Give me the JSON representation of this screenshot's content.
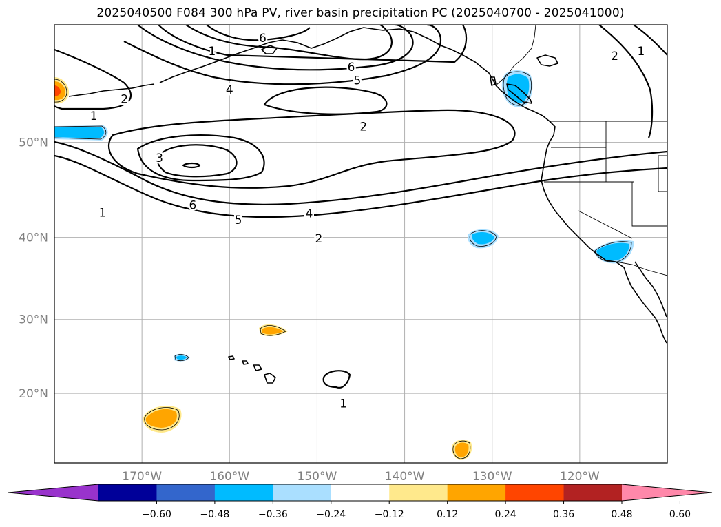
{
  "title": "2025040500 F084 300 hPa PV, river basin precipitation PC (2025040700 - 2025041000)",
  "map": {
    "lon_range": [
      -180,
      -110
    ],
    "lat_range": [
      10,
      60
    ],
    "lat_ticks": [
      {
        "value": 20,
        "label": "20°N"
      },
      {
        "value": 30,
        "label": "30°N"
      },
      {
        "value": 40,
        "label": "40°N"
      },
      {
        "value": 50,
        "label": "50°N"
      }
    ],
    "lon_ticks": [
      {
        "value": -170,
        "label": "170°W"
      },
      {
        "value": -160,
        "label": "160°W"
      },
      {
        "value": -150,
        "label": "150°W"
      },
      {
        "value": -140,
        "label": "140°W"
      },
      {
        "value": -130,
        "label": "130°W"
      },
      {
        "value": -120,
        "label": "120°W"
      }
    ],
    "pv_contour_labels": [
      {
        "text": "1",
        "lon": -174.5,
        "lat": 42.8
      },
      {
        "text": "1",
        "lon": -175.5,
        "lat": 52.5
      },
      {
        "text": "1",
        "lon": -162,
        "lat": 58
      },
      {
        "text": "1",
        "lon": -113,
        "lat": 58
      },
      {
        "text": "1",
        "lon": -147,
        "lat": 18.6
      },
      {
        "text": "2",
        "lon": -172,
        "lat": 54
      },
      {
        "text": "2",
        "lon": -149.8,
        "lat": 39.9
      },
      {
        "text": "2",
        "lon": -144.7,
        "lat": 51.5
      },
      {
        "text": "2",
        "lon": -116,
        "lat": 57.6
      },
      {
        "text": "3",
        "lon": -168,
        "lat": 48.5
      },
      {
        "text": "4",
        "lon": -150.9,
        "lat": 42.7
      },
      {
        "text": "4",
        "lon": -160,
        "lat": 54.8
      },
      {
        "text": "5",
        "lon": -159,
        "lat": 42
      },
      {
        "text": "5",
        "lon": -145.4,
        "lat": 55.6
      },
      {
        "text": "6",
        "lon": -164.2,
        "lat": 43.6
      },
      {
        "text": "6",
        "lon": -156.2,
        "lat": 59
      },
      {
        "text": "6",
        "lon": -146.1,
        "lat": 56.7
      }
    ]
  },
  "colorbar": {
    "colors": [
      "#9933cc",
      "#000099",
      "#3366cc",
      "#00bbff",
      "#aadfff",
      "#ffffff",
      "#ffe98c",
      "#ffa500",
      "#ff4500",
      "#b22222",
      "#ff88aa"
    ],
    "tick_labels": [
      "−0.60",
      "−0.48",
      "−0.36",
      "−0.24",
      "−0.12",
      "0.12",
      "0.24",
      "0.36",
      "0.48",
      "0.60"
    ]
  },
  "colors": {
    "negative_fill": "#00bbff",
    "negative_light": "#aadfff",
    "positive_fill": "#ffa500",
    "positive_light": "#ffe98c"
  }
}
